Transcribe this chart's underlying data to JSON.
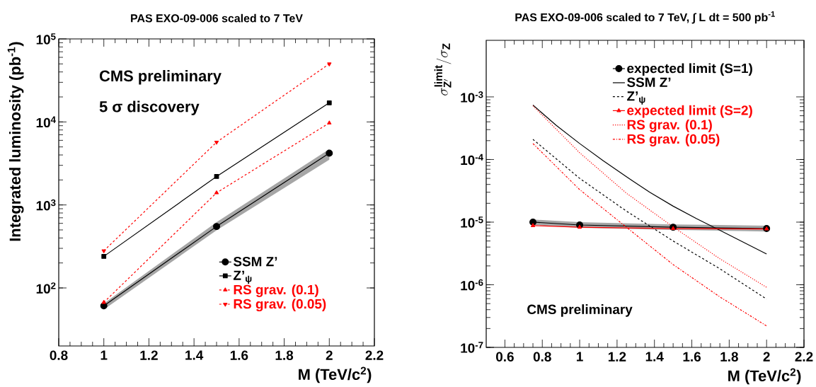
{
  "chart_data": [
    {
      "type": "line",
      "title": "PAS EXO-09-006 scaled to 7 TeV",
      "xlabel": "M (TeV/c$^{2}$)",
      "ylabel": "Integrated luminosity (pb$^{-1}$)",
      "x": [
        1,
        1.5,
        2
      ],
      "xlim": [
        0.8,
        2.2
      ],
      "ylim": [
        20,
        100000
      ],
      "log": "y",
      "legend": "bottom right",
      "xticks": [
        0.8,
        1,
        1.2,
        1.4,
        1.6,
        1.8,
        2,
        2.2
      ],
      "yticks": [
        {
          "value": 100,
          "label": "10$^{2}$"
        },
        {
          "value": 1000,
          "label": "10$^{3}$"
        },
        {
          "value": 10000,
          "label": "10$^{4}$"
        },
        {
          "value": 100000,
          "label": "10$^{5}$"
        }
      ],
      "annotations": [
        "CMS preliminary",
        "5 σ discovery"
      ],
      "series": [
        {
          "name": "SSM Z’",
          "color": "#000000",
          "values": [
            61,
            550,
            4200
          ],
          "lower": [
            55,
            495,
            3500
          ],
          "upper": [
            65,
            620,
            4700
          ],
          "marker": "circle",
          "line_style": "solid"
        },
        {
          "name": "Z’$_{ψ}$",
          "color": "#000000",
          "values": [
            240,
            2200,
            17000
          ],
          "marker": "square",
          "line_style": "solid"
        },
        {
          "name": "RS grav. (0.1)",
          "color": "#ff0000",
          "values": [
            67,
            1400,
            9700
          ],
          "marker": "triangle",
          "line_style": "dashed"
        },
        {
          "name": "RS grav. (0.05)",
          "color": "#ff0000",
          "values": [
            280,
            5700,
            50000
          ],
          "marker": "triangle-down",
          "line_style": "dashed"
        }
      ]
    },
    {
      "type": "line",
      "title": "PAS EXO-09-006 scaled to 7 TeV, ∫ L dt = 500 pb$^{-1}$",
      "xlabel": "M (TeV/c$^{2}$)",
      "ylabel": "\\sigma^{\\mathbf{limit}}_{\\mathbf{Z'}}/\\sigma_{\\mathbf{Z}}",
      "xlim": [
        0.5,
        2.2
      ],
      "ylim": [
        1e-07,
        0.008
      ],
      "log": "y",
      "legend": "top right",
      "xticks": [
        0.6,
        0.8,
        1,
        1.2,
        1.4,
        1.6,
        1.8,
        2,
        2.2
      ],
      "yticks": [
        {
          "value": 1e-07,
          "label": "10$^{-7}$"
        },
        {
          "value": 1e-06,
          "label": "10$^{-6}$"
        },
        {
          "value": 1e-05,
          "label": "10$^{-5}$"
        },
        {
          "value": 0.0001,
          "label": "10$^{-4}$"
        },
        {
          "value": 0.001,
          "label": "10$^{-3}$"
        }
      ],
      "annotations": [
        "CMS preliminary"
      ],
      "series": [
        {
          "name": "expected limit (S=1)",
          "color": "#000000",
          "x": [
            0.75,
            1,
            1.5,
            2
          ],
          "values": [
            1e-05,
            9e-06,
            8.3e-06,
            7.9e-06
          ],
          "lower": [
            9e-06,
            8.1e-06,
            7.5e-06,
            7.1e-06
          ],
          "upper": [
            1.1e-05,
            1e-05,
            9.2e-06,
            8.8e-06
          ],
          "marker": "circle",
          "line_style": "solid"
        },
        {
          "name": "SSM Z’",
          "color": "#000000",
          "x": [
            0.75,
            0.875,
            1,
            1.125,
            1.25,
            1.375,
            1.5,
            1.625,
            1.75,
            1.875,
            2
          ],
          "values": [
            0.00074,
            0.00035,
            0.00018,
            9.6e-05,
            5.3e-05,
            3e-05,
            1.8e-05,
            1.14e-05,
            7.4e-06,
            4.8e-06,
            3.1e-06
          ],
          "marker": "none",
          "line_style": "solid"
        },
        {
          "name": "Z’$_{ψ}$",
          "color": "#000000",
          "x": [
            0.75,
            1,
            1.25,
            1.5,
            1.75,
            2
          ],
          "values": [
            0.00021,
            5e-05,
            1.5e-05,
            5e-06,
            1.8e-06,
            5.9e-07
          ],
          "marker": "none",
          "line_style": "dashed"
        },
        {
          "name": "expected limit (S=2)",
          "color": "#ff0000",
          "x": [
            0.75,
            1,
            1.5,
            2
          ],
          "values": [
            8.8e-06,
            8.3e-06,
            7.9e-06,
            7.8e-06
          ],
          "marker": "triangle",
          "line_style": "solid"
        },
        {
          "name": "RS grav. (0.1)",
          "color": "#ff0000",
          "x": [
            0.75,
            1,
            1.25,
            1.5,
            1.75,
            2
          ],
          "values": [
            0.00072,
            0.000128,
            2.9e-05,
            8.4e-06,
            2.6e-06,
            9.1e-07
          ],
          "marker": "none",
          "line_style": "dotted"
        },
        {
          "name": "RS grav. (0.05)",
          "color": "#ff0000",
          "x": [
            0.75,
            1,
            1.25,
            1.5,
            1.75,
            2
          ],
          "values": [
            0.00018,
            3.3e-05,
            8.3e-06,
            2.1e-06,
            6.4e-07,
            2.2e-07
          ],
          "marker": "none",
          "line_style": "dashdot"
        }
      ]
    }
  ]
}
